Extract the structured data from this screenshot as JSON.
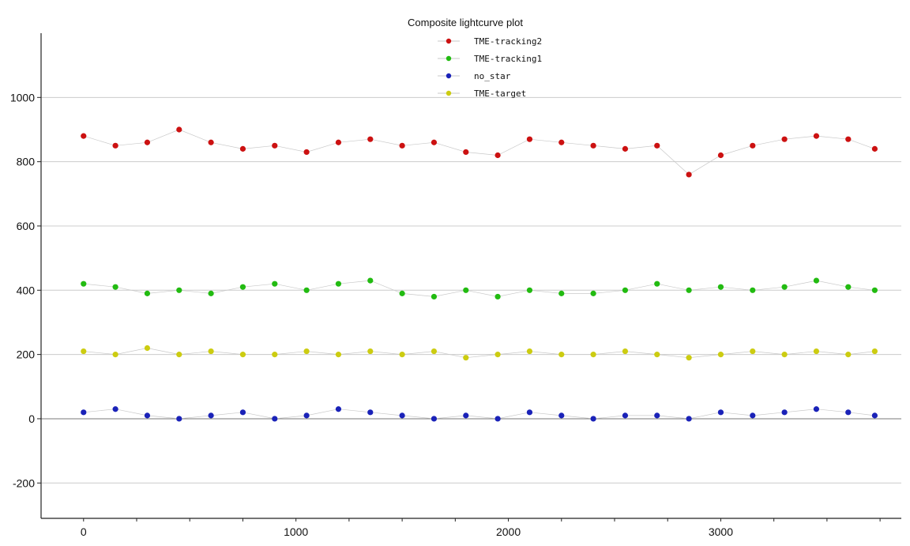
{
  "chart_data": {
    "type": "scatter",
    "title": "Composite lightcurve plot",
    "xlabel": "",
    "ylabel": "",
    "xlim": [
      -200,
      3850
    ],
    "ylim": [
      -310,
      1200
    ],
    "x_ticks": [
      0,
      1000,
      2000,
      3000
    ],
    "x_tick_labels": [
      "0",
      "1000",
      "2000",
      "3000"
    ],
    "y_ticks": [
      -200,
      0,
      200,
      400,
      600,
      800,
      1000
    ],
    "y_tick_labels": [
      "-200",
      "0",
      "200",
      "400",
      "600",
      "800",
      "1000"
    ],
    "grid": {
      "x": false,
      "y": true
    },
    "legend": {
      "placement": "top-center"
    },
    "connecting_line_color": "#c9c9c9",
    "series": [
      {
        "name": "TME-tracking2",
        "color": "#cc1111",
        "x": [
          0,
          150,
          300,
          450,
          600,
          750,
          900,
          1050,
          1200,
          1350,
          1500,
          1650,
          1800,
          1950,
          2100,
          2250,
          2400,
          2550,
          2700,
          2850,
          3000,
          3150,
          3300,
          3450,
          3600,
          3725
        ],
        "values": [
          880,
          850,
          860,
          900,
          860,
          840,
          850,
          830,
          860,
          870,
          850,
          860,
          830,
          820,
          870,
          860,
          850,
          840,
          850,
          760,
          820,
          850,
          870,
          880,
          870,
          840
        ]
      },
      {
        "name": "TME-tracking1",
        "color": "#22bb11",
        "x": [
          0,
          150,
          300,
          450,
          600,
          750,
          900,
          1050,
          1200,
          1350,
          1500,
          1650,
          1800,
          1950,
          2100,
          2250,
          2400,
          2550,
          2700,
          2850,
          3000,
          3150,
          3300,
          3450,
          3600,
          3725
        ],
        "values": [
          420,
          410,
          390,
          400,
          390,
          410,
          420,
          400,
          420,
          430,
          390,
          380,
          400,
          380,
          400,
          390,
          390,
          400,
          420,
          400,
          410,
          400,
          410,
          430,
          410,
          400
        ]
      },
      {
        "name": "no_star",
        "color": "#1a22b8",
        "x": [
          0,
          150,
          300,
          450,
          600,
          750,
          900,
          1050,
          1200,
          1350,
          1500,
          1650,
          1800,
          1950,
          2100,
          2250,
          2400,
          2550,
          2700,
          2850,
          3000,
          3150,
          3300,
          3450,
          3600,
          3725
        ],
        "values": [
          20,
          30,
          10,
          0,
          10,
          20,
          0,
          10,
          30,
          20,
          10,
          0,
          10,
          0,
          20,
          10,
          0,
          10,
          10,
          0,
          20,
          10,
          20,
          30,
          20,
          10
        ]
      },
      {
        "name": "TME-target",
        "color": "#cccc11",
        "x": [
          0,
          150,
          300,
          450,
          600,
          750,
          900,
          1050,
          1200,
          1350,
          1500,
          1650,
          1800,
          1950,
          2100,
          2250,
          2400,
          2550,
          2700,
          2850,
          3000,
          3150,
          3300,
          3450,
          3600,
          3725
        ],
        "values": [
          210,
          200,
          220,
          200,
          210,
          200,
          200,
          210,
          200,
          210,
          200,
          210,
          190,
          200,
          210,
          200,
          200,
          210,
          200,
          190,
          200,
          210,
          200,
          210,
          200,
          210
        ]
      }
    ]
  }
}
